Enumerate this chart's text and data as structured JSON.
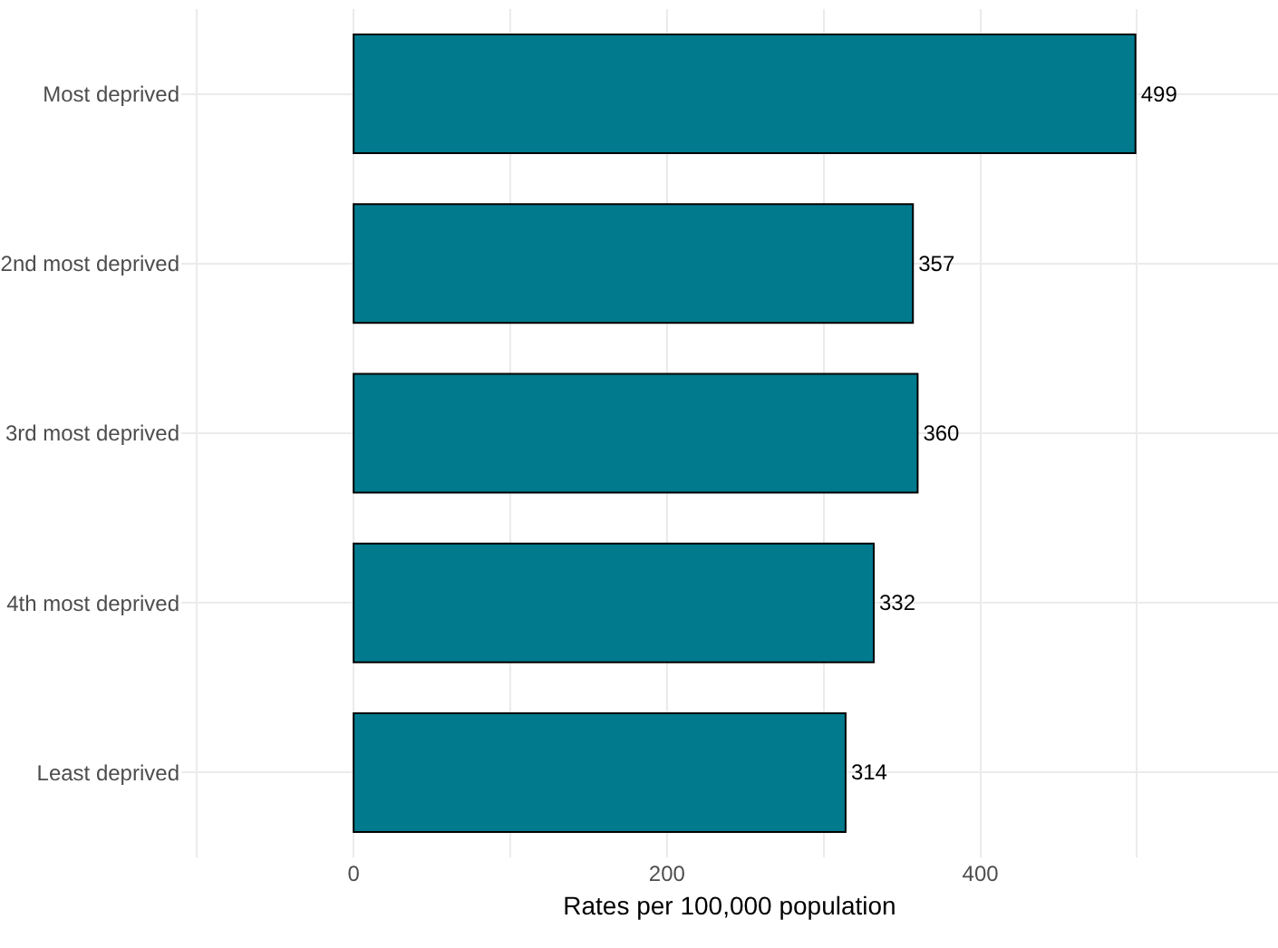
{
  "chart_data": {
    "type": "bar",
    "orientation": "horizontal",
    "xlabel": "Rates per 100,000 population",
    "categories": [
      "Most deprived",
      "2nd most deprived",
      "3rd most deprived",
      "4th most deprived",
      "Least deprived"
    ],
    "values": [
      499,
      357,
      360,
      332,
      314
    ],
    "color": "#017a8e",
    "xlim": [
      -110,
      590
    ],
    "xticks": [
      {
        "value": -100,
        "label": null
      },
      0,
      {
        "value": 100,
        "label": null
      },
      200,
      {
        "value": 300,
        "label": null
      },
      400,
      {
        "value": 500,
        "label": null
      }
    ],
    "grid": true,
    "data_labels": true
  }
}
